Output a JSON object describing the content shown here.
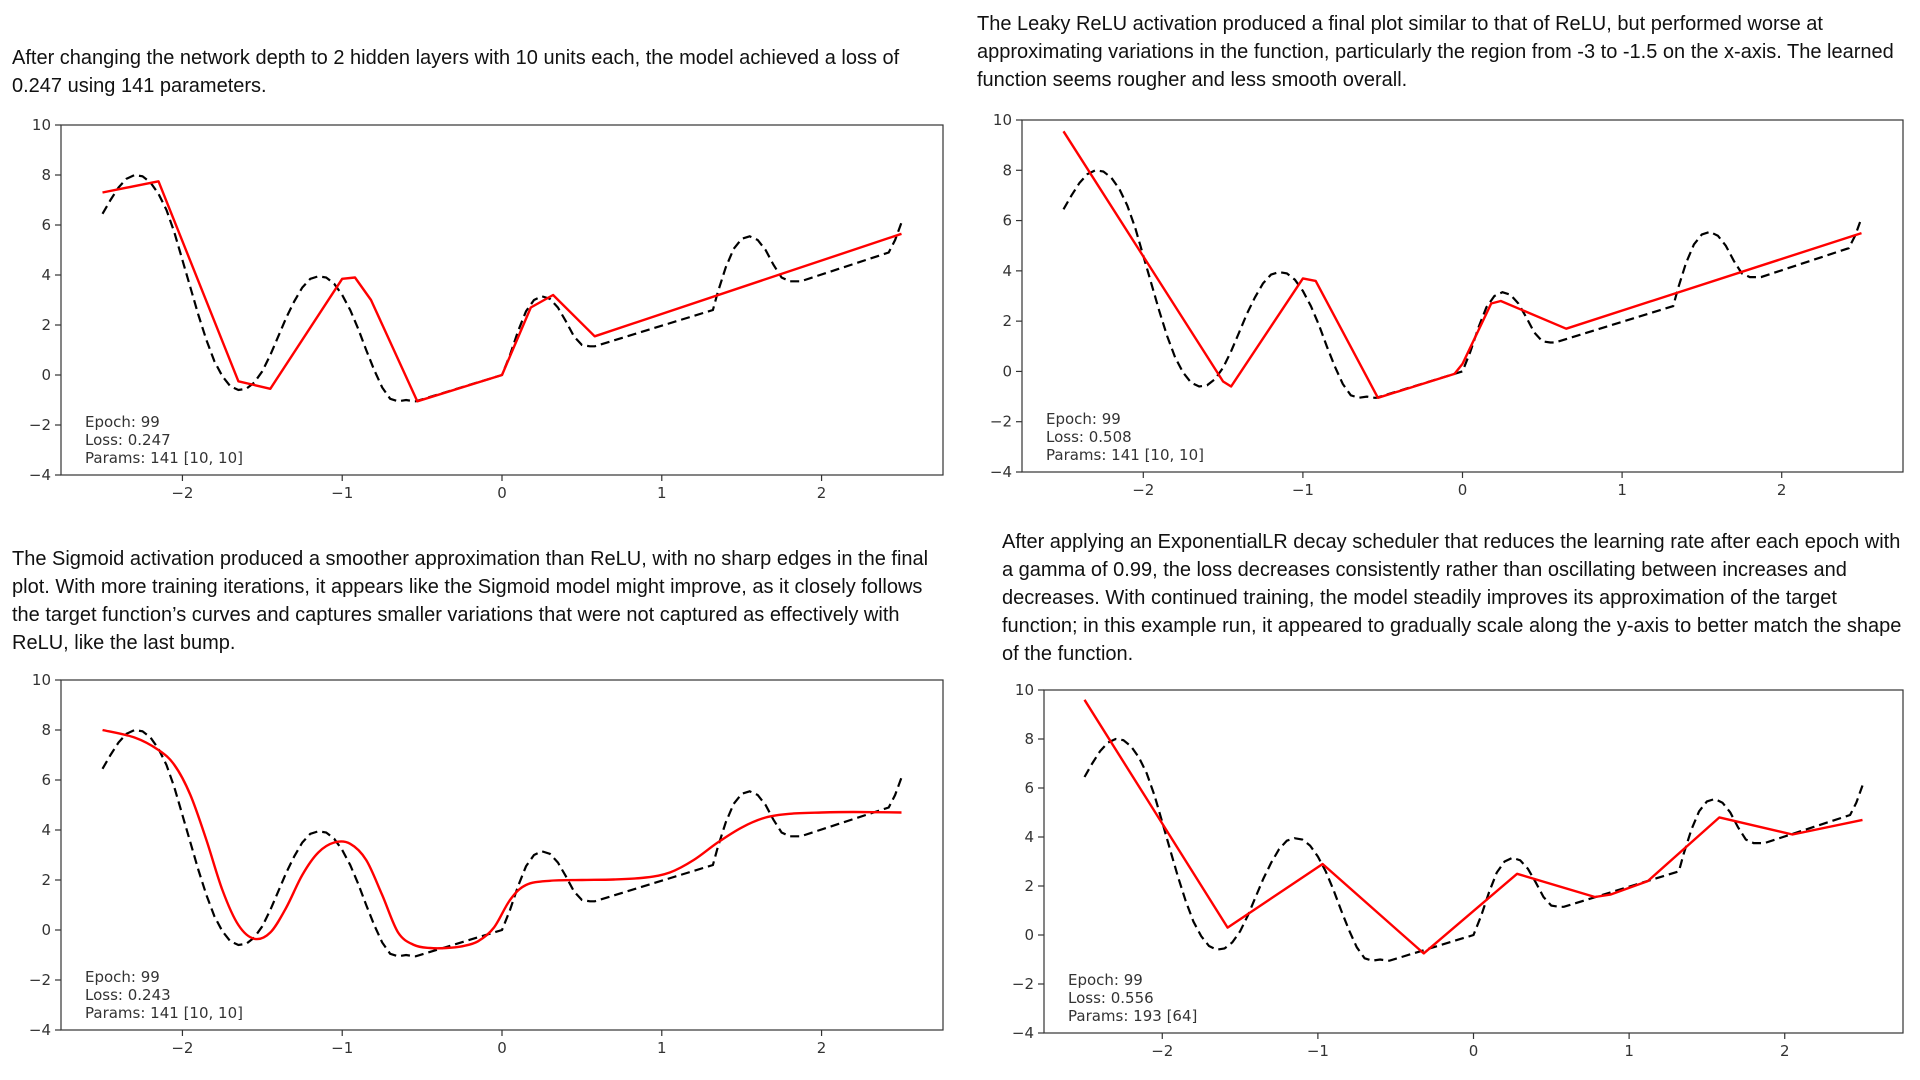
{
  "paragraphs": {
    "p1": "After changing the network depth to 2 hidden layers with 10 units each, the model achieved a loss of 0.247 using 141 parameters.",
    "p2": "The Leaky ReLU activation produced a final plot similar to that of ReLU, but performed worse at approximating variations in the function, particularly the region from -3 to -1.5 on the x-axis. The learned function seems rougher and less smooth overall.",
    "p3": "The Sigmoid activation produced a smoother approximation than ReLU, with no sharp edges in the final plot. With more training iterations, it appears like the Sigmoid model might improve, as it closely follows the target function’s curves and captures smaller variations that were not captured as effectively with ReLU, like the last bump.",
    "p4": "After applying an ExponentialLR decay scheduler that reduces the learning rate after each epoch with a gamma of 0.99, the loss decreases consistently rather than oscillating between increases and decreases. With continued training, the model steadily improves its approximation of the target function; in this example run, it appeared to gradually scale along the y-axis to better match the shape of the function."
  },
  "colors": {
    "target": "#000000",
    "model": "#ff0000",
    "axes": "#333333"
  },
  "chart_data": [
    {
      "id": "relu-2x10",
      "type": "line",
      "title": "",
      "xlabel": "",
      "ylabel": "",
      "xlim": [
        -2.76,
        2.76
      ],
      "ylim": [
        -4,
        10
      ],
      "xticks": [
        -2,
        -1,
        0,
        1,
        2
      ],
      "xtick_labels": [
        "−2",
        "−1",
        "0",
        "1",
        "2"
      ],
      "yticks": [
        -4,
        -2,
        0,
        2,
        4,
        6,
        8,
        10
      ],
      "ytick_labels": [
        "−4",
        "−2",
        "0",
        "2",
        "4",
        "6",
        "8",
        "10"
      ],
      "grid": false,
      "annotation": [
        "Epoch: 99",
        "Loss: 0.247",
        "Params: 141  [10, 10]"
      ],
      "series": [
        {
          "name": "target",
          "style": "dashed",
          "source": "target"
        },
        {
          "name": "model",
          "style": "solid",
          "x": [
            -2.5,
            -2.15,
            -1.65,
            -1.45,
            -1.0,
            -0.92,
            -0.82,
            -0.53,
            0.0,
            0.18,
            0.32,
            0.58,
            2.5
          ],
          "y": [
            7.3,
            7.75,
            -0.25,
            -0.55,
            3.85,
            3.9,
            3.0,
            -1.05,
            0.0,
            2.7,
            3.2,
            1.55,
            5.65
          ]
        }
      ]
    },
    {
      "id": "leaky-relu",
      "type": "line",
      "title": "",
      "xlabel": "",
      "ylabel": "",
      "xlim": [
        -2.76,
        2.76
      ],
      "ylim": [
        -4,
        10
      ],
      "xticks": [
        -2,
        -1,
        0,
        1,
        2
      ],
      "xtick_labels": [
        "−2",
        "−1",
        "0",
        "1",
        "2"
      ],
      "yticks": [
        -4,
        -2,
        0,
        2,
        4,
        6,
        8,
        10
      ],
      "ytick_labels": [
        "−4",
        "−2",
        "0",
        "2",
        "4",
        "6",
        "8",
        "10"
      ],
      "grid": false,
      "annotation": [
        "Epoch: 99",
        "Loss: 0.508",
        "Params: 141  [10, 10]"
      ],
      "series": [
        {
          "name": "target",
          "style": "dashed",
          "source": "target"
        },
        {
          "name": "model",
          "style": "solid",
          "x": [
            -2.5,
            -1.5,
            -1.45,
            -1.0,
            -0.92,
            -0.53,
            -0.05,
            0.0,
            0.18,
            0.24,
            0.65,
            2.5
          ],
          "y": [
            9.55,
            -0.4,
            -0.6,
            3.7,
            3.6,
            -1.05,
            -0.1,
            0.3,
            2.7,
            2.8,
            1.7,
            5.5
          ]
        }
      ]
    },
    {
      "id": "sigmoid",
      "type": "line",
      "title": "",
      "xlabel": "",
      "ylabel": "",
      "xlim": [
        -2.76,
        2.76
      ],
      "ylim": [
        -4,
        10
      ],
      "xticks": [
        -2,
        -1,
        0,
        1,
        2
      ],
      "xtick_labels": [
        "−2",
        "−1",
        "0",
        "1",
        "2"
      ],
      "yticks": [
        -4,
        -2,
        0,
        2,
        4,
        6,
        8,
        10
      ],
      "ytick_labels": [
        "−4",
        "−2",
        "0",
        "2",
        "4",
        "6",
        "8",
        "10"
      ],
      "grid": false,
      "annotation": [
        "Epoch: 99",
        "Loss: 0.243",
        "Params: 141  [10, 10]"
      ],
      "series": [
        {
          "name": "target",
          "style": "dashed",
          "source": "target"
        },
        {
          "name": "model",
          "style": "smooth",
          "x": [
            -2.5,
            -2.3,
            -2.15,
            -2.05,
            -1.95,
            -1.85,
            -1.75,
            -1.65,
            -1.55,
            -1.45,
            -1.35,
            -1.25,
            -1.15,
            -1.05,
            -0.95,
            -0.85,
            -0.75,
            -0.65,
            -0.55,
            -0.45,
            -0.35,
            -0.25,
            -0.15,
            -0.05,
            0.05,
            0.15,
            0.3,
            0.5,
            0.7,
            0.9,
            1.05,
            1.2,
            1.35,
            1.5,
            1.65,
            1.8,
            2.0,
            2.2,
            2.5
          ],
          "y": [
            8.0,
            7.7,
            7.2,
            6.6,
            5.4,
            3.6,
            1.6,
            0.2,
            -0.35,
            -0.1,
            0.9,
            2.2,
            3.1,
            3.5,
            3.45,
            2.8,
            1.4,
            -0.1,
            -0.6,
            -0.72,
            -0.72,
            -0.65,
            -0.45,
            0.1,
            1.2,
            1.8,
            1.97,
            2.0,
            2.02,
            2.1,
            2.3,
            2.8,
            3.5,
            4.1,
            4.5,
            4.65,
            4.7,
            4.72,
            4.7
          ]
        }
      ]
    },
    {
      "id": "exponential-lr",
      "type": "line",
      "title": "",
      "xlabel": "",
      "ylabel": "",
      "xlim": [
        -2.76,
        2.76
      ],
      "ylim": [
        -4,
        10
      ],
      "xticks": [
        -2,
        -1,
        0,
        1,
        2
      ],
      "xtick_labels": [
        "−2",
        "−1",
        "0",
        "1",
        "2"
      ],
      "yticks": [
        -4,
        -2,
        0,
        2,
        4,
        6,
        8,
        10
      ],
      "ytick_labels": [
        "−4",
        "−2",
        "0",
        "2",
        "4",
        "6",
        "8",
        "10"
      ],
      "grid": false,
      "annotation": [
        "Epoch: 99",
        "Loss: 0.556",
        "Params: 193  [64]"
      ],
      "series": [
        {
          "name": "target",
          "style": "dashed",
          "source": "target"
        },
        {
          "name": "model",
          "style": "solid",
          "x": [
            -2.5,
            -1.58,
            -0.97,
            -0.32,
            0.28,
            0.78,
            0.88,
            1.12,
            1.58,
            2.05,
            2.5
          ],
          "y": [
            9.6,
            0.3,
            2.9,
            -0.75,
            2.5,
            1.55,
            1.65,
            2.2,
            4.8,
            4.1,
            4.7
          ]
        }
      ]
    }
  ],
  "target_function": {
    "x": [
      -2.5,
      -2.45,
      -2.4,
      -2.35,
      -2.3,
      -2.25,
      -2.2,
      -2.15,
      -2.1,
      -2.05,
      -2.0,
      -1.95,
      -1.9,
      -1.85,
      -1.8,
      -1.75,
      -1.7,
      -1.65,
      -1.6,
      -1.55,
      -1.5,
      -1.45,
      -1.4,
      -1.35,
      -1.3,
      -1.25,
      -1.2,
      -1.15,
      -1.1,
      -1.05,
      -1.0,
      -0.95,
      -0.9,
      -0.85,
      -0.8,
      -0.75,
      -0.7,
      -0.65,
      -0.6,
      -0.55,
      -0.54,
      0.0,
      0.05,
      0.1,
      0.15,
      0.2,
      0.25,
      0.3,
      0.35,
      0.4,
      0.45,
      0.5,
      0.55,
      0.58,
      1.32,
      1.35,
      1.4,
      1.45,
      1.5,
      1.55,
      1.6,
      1.65,
      1.7,
      1.75,
      1.8,
      1.85,
      1.87,
      2.42,
      2.46,
      2.5
    ],
    "y": [
      6.45,
      7.0,
      7.5,
      7.85,
      8.0,
      7.95,
      7.7,
      7.25,
      6.6,
      5.7,
      4.6,
      3.5,
      2.4,
      1.4,
      0.55,
      -0.05,
      -0.45,
      -0.6,
      -0.55,
      -0.3,
      0.15,
      0.8,
      1.55,
      2.3,
      2.95,
      3.5,
      3.85,
      3.95,
      3.9,
      3.65,
      3.2,
      2.6,
      1.85,
      1.0,
      0.2,
      -0.5,
      -0.95,
      -1.05,
      -1.0,
      -1.05,
      -1.05,
      0.0,
      0.8,
      1.75,
      2.55,
      3.0,
      3.15,
      3.05,
      2.7,
      2.15,
      1.55,
      1.2,
      1.15,
      1.15,
      2.6,
      3.3,
      4.3,
      5.05,
      5.45,
      5.55,
      5.4,
      5.0,
      4.4,
      3.9,
      3.75,
      3.75,
      3.75,
      4.9,
      5.4,
      6.1
    ]
  }
}
